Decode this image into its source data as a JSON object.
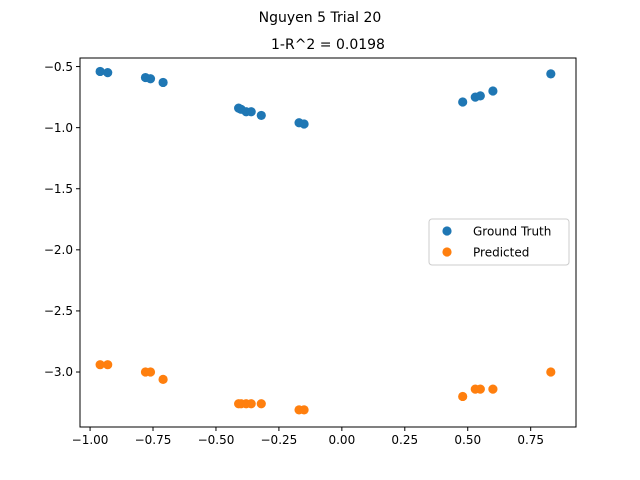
{
  "figure": {
    "suptitle": "Nguyen 5 Trial 20",
    "title": "1-R^2 = 0.0198"
  },
  "chart_data": {
    "type": "scatter",
    "xlim": [
      -1.04,
      0.93
    ],
    "ylim": [
      -3.45,
      -0.43
    ],
    "xticks": [
      -1.0,
      -0.75,
      -0.5,
      -0.25,
      0.0,
      0.25,
      0.5,
      0.75
    ],
    "xtick_labels": [
      "−1.00",
      "−0.75",
      "−0.50",
      "−0.25",
      "0.00",
      "0.25",
      "0.50",
      "0.75"
    ],
    "yticks": [
      -0.5,
      -1.0,
      -1.5,
      -2.0,
      -2.5,
      -3.0
    ],
    "ytick_labels": [
      "−0.5",
      "−1.0",
      "−1.5",
      "−2.0",
      "−2.5",
      "−3.0"
    ],
    "grid": false,
    "legend_position": "center-right",
    "series": [
      {
        "name": "Ground Truth",
        "color": "#1f77b4",
        "x": [
          -0.96,
          -0.93,
          -0.78,
          -0.76,
          -0.71,
          -0.41,
          -0.4,
          -0.38,
          -0.36,
          -0.32,
          -0.17,
          -0.15,
          0.48,
          0.53,
          0.55,
          0.6,
          0.83
        ],
        "y": [
          -0.54,
          -0.55,
          -0.59,
          -0.6,
          -0.63,
          -0.84,
          -0.85,
          -0.87,
          -0.87,
          -0.9,
          -0.96,
          -0.97,
          -0.79,
          -0.75,
          -0.74,
          -0.7,
          -0.56
        ]
      },
      {
        "name": "Predicted",
        "color": "#ff7f0e",
        "x": [
          -0.96,
          -0.93,
          -0.78,
          -0.76,
          -0.71,
          -0.41,
          -0.4,
          -0.38,
          -0.36,
          -0.32,
          -0.17,
          -0.15,
          0.48,
          0.53,
          0.55,
          0.6,
          0.83
        ],
        "y": [
          -2.94,
          -2.94,
          -3.0,
          -3.0,
          -3.06,
          -3.26,
          -3.26,
          -3.26,
          -3.26,
          -3.26,
          -3.31,
          -3.31,
          -3.2,
          -3.14,
          -3.14,
          -3.14,
          -3.0
        ]
      }
    ]
  }
}
